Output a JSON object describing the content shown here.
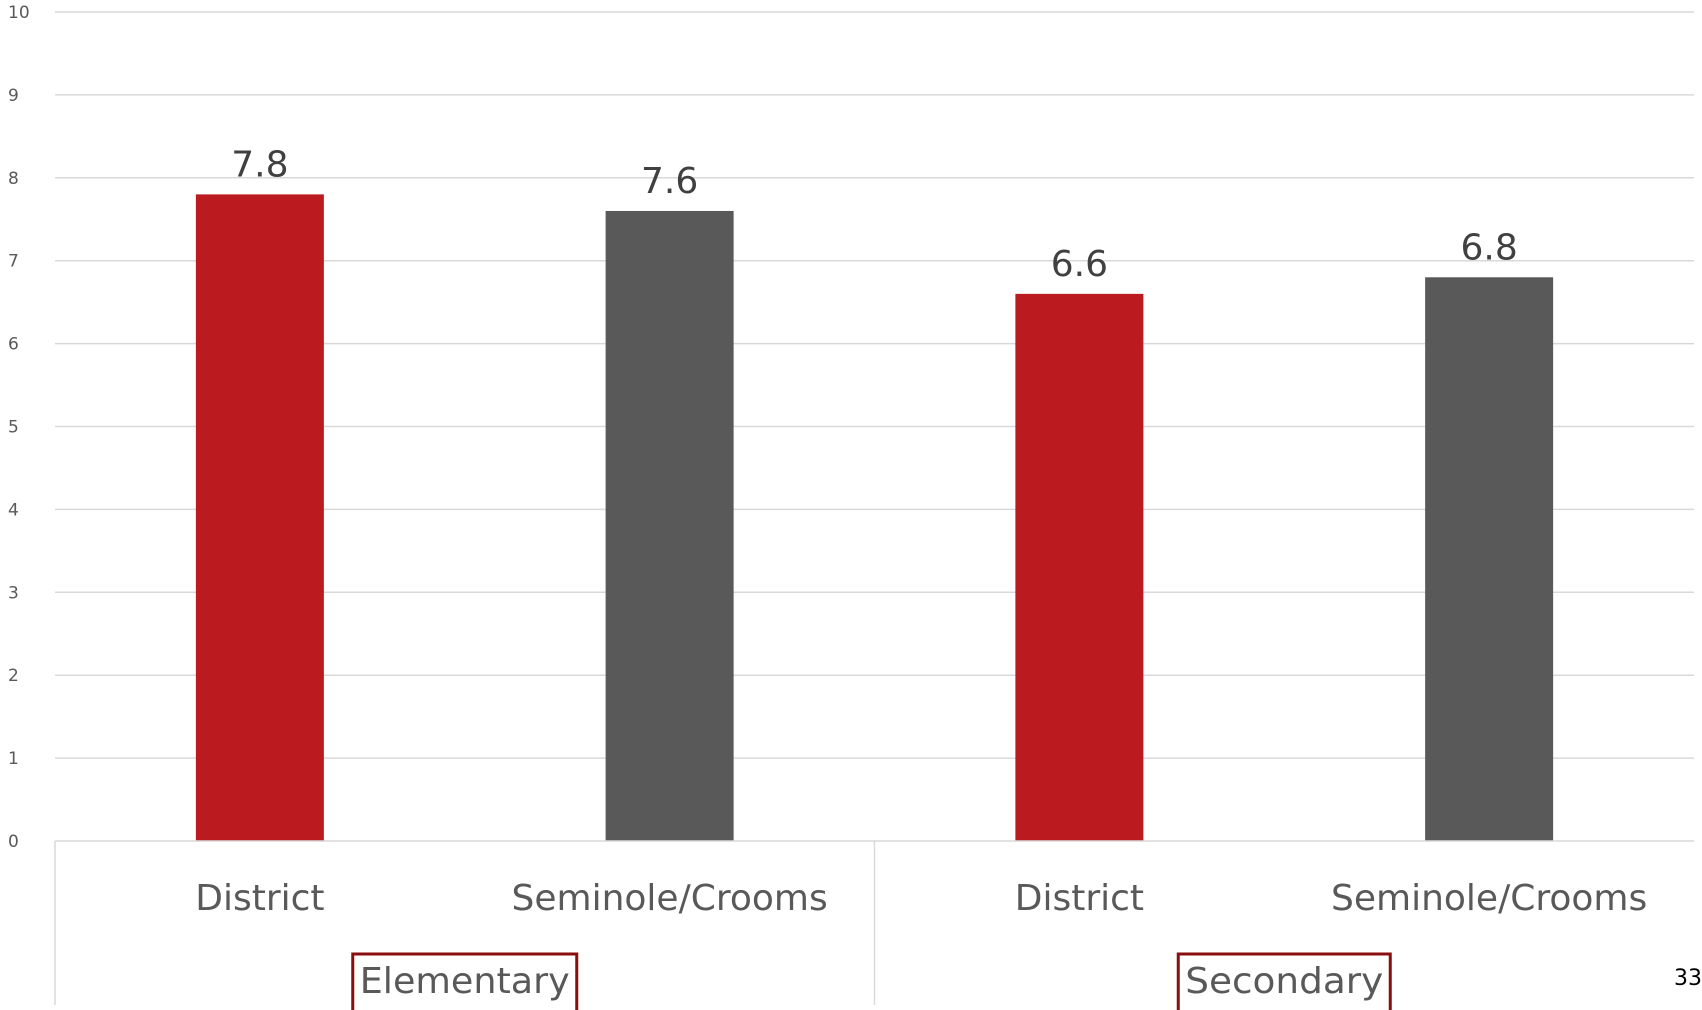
{
  "chart_data": {
    "type": "bar",
    "y_ticks": [
      "0",
      "1",
      "2",
      "3",
      "4",
      "5",
      "6",
      "7",
      "8",
      "9",
      "10"
    ],
    "ylim": [
      0,
      10
    ],
    "grid": true,
    "groups": [
      "Elementary",
      "Secondary"
    ],
    "categories": [
      "District",
      "Seminole/Crooms",
      "District",
      "Seminole/Crooms"
    ],
    "values": [
      7.8,
      7.6,
      6.6,
      6.8
    ],
    "value_labels": [
      "7.8",
      "7.6",
      "6.6",
      "6.8"
    ],
    "colors": {
      "district": "#BB1B1F",
      "school": "#595959",
      "group_box_border": "#8B0E0E",
      "grid": "#D9D9D9"
    }
  },
  "page_number": "33"
}
